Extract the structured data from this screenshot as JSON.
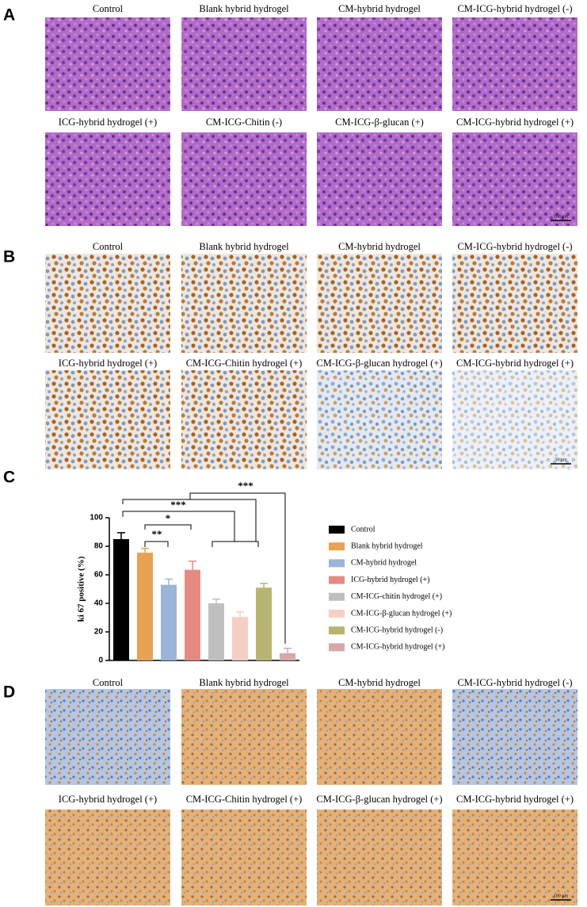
{
  "figure": {
    "panels": [
      {
        "label": "A",
        "captions": [
          "Control",
          "Blank hybrid hydrogel",
          "CM-hybrid hydrogel",
          "CM-ICG-hybrid hydrogel  (-)",
          "ICG-hybrid hydrogel  (+)",
          "CM-ICG-Chitin  (-)",
          "CM-ICG-β-glucan (+)",
          "CM-ICG-hybrid hydrogel (+)"
        ],
        "scale_bar": "100 μm"
      },
      {
        "label": "B",
        "captions": [
          "Control",
          "Blank hybrid hydrogel",
          "CM-hybrid hydrogel",
          "CM-ICG-hybrid hydrogel  (-)",
          "ICG-hybrid hydrogel  (+)",
          "CM-ICG-Chitin hydrogel (+)",
          "CM-ICG-β-glucan hydrogel (+)",
          "CM-ICG-hybrid hydrogel (+)"
        ],
        "scale_bar": "50 μm"
      },
      {
        "label": "C"
      },
      {
        "label": "D",
        "captions": [
          "Control",
          "Blank hybrid hydrogel",
          "CM-hybrid hydrogel",
          "CM-ICG-hybrid hydrogel  (-)",
          "ICG-hybrid hydrogel  (+)",
          "CM-ICG-Chitin hydrogel (+)",
          "CM-ICG-β-glucan hydrogel (+)",
          "CM-ICG-hybrid hydrogel (+)"
        ],
        "scale_bar": "100 μm"
      }
    ]
  },
  "chart_data": {
    "type": "bar",
    "y_label": "ki 67 positive (%)",
    "categories": [
      "Control",
      "Blank hybrid hydrogel",
      "CM-hybrid hydrogel",
      "ICG-hybrid hydrogel (+)",
      "CM-ICG-chitin hydrogel (+)",
      "CM-ICG-β-glucan hydrogel (+)",
      "CM-ICG-hybrid hydrogel (-)",
      "CM-ICG-hybrid hydrogel (+)"
    ],
    "values": [
      85,
      75.5,
      53,
      63.5,
      40,
      30.5,
      51,
      5
    ],
    "errors": [
      4.5,
      3,
      4,
      6,
      3,
      3.5,
      3,
      3.5
    ],
    "colors": [
      "#000000",
      "#e8a253",
      "#9bb5d6",
      "#e58a82",
      "#bfbfbf",
      "#f5cfc4",
      "#b8b572",
      "#d6a8a8"
    ],
    "ylim": [
      0,
      100
    ],
    "yticks": [
      0,
      20,
      40,
      60,
      80,
      100
    ],
    "annotations": [
      "**",
      "*",
      "***",
      "***"
    ]
  }
}
